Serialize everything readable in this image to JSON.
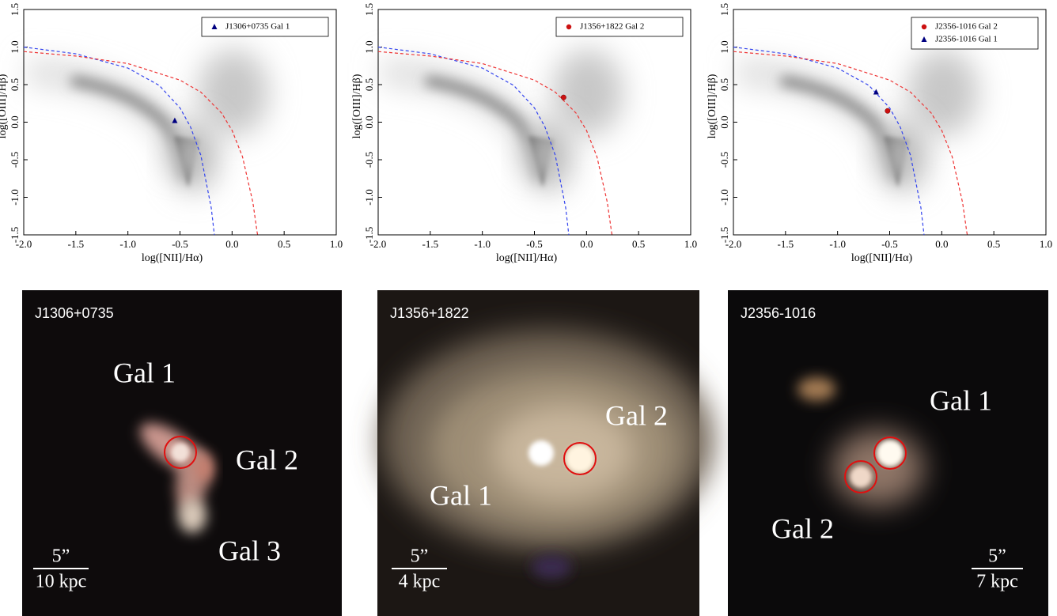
{
  "chart_data": [
    {
      "type": "scatter",
      "xlabel": "log([NII]/Hα)",
      "ylabel": "log([OIII]/Hβ)",
      "xlim": [
        -2,
        1
      ],
      "ylim": [
        -1.5,
        1.5
      ],
      "xticks": [
        {
          "value": -2,
          "label": "-2.0"
        },
        -1.5,
        {
          "value": -1,
          "label": "-1.0"
        },
        -0.5,
        {
          "value": 0,
          "label": "0.0"
        },
        0.5,
        {
          "value": 1,
          "label": "1.0"
        }
      ],
      "yticks": [
        -1.5,
        {
          "value": -1,
          "label": "-1.0"
        },
        -0.5,
        {
          "value": 0,
          "label": "0.0"
        },
        0.5,
        {
          "value": 1,
          "label": "1.0"
        },
        1.5
      ],
      "grid": false,
      "legend": "upper right",
      "curves": [
        {
          "color": "#3344ee",
          "x": [
            -2,
            -1.5,
            -1,
            -0.7,
            -0.5,
            -0.4,
            -0.3,
            -0.2,
            -0.17
          ],
          "values": [
            1.0,
            0.91,
            0.72,
            0.49,
            0.19,
            -0.06,
            -0.44,
            -1.14,
            -1.5
          ]
        },
        {
          "color": "#ee3333",
          "x": [
            -2,
            -1.5,
            -1,
            -0.5,
            -0.3,
            -0.1,
            0,
            0.1,
            0.2,
            0.24,
            0.245
          ],
          "values": [
            0.94,
            0.88,
            0.78,
            0.56,
            0.4,
            0.12,
            -0.11,
            -0.46,
            -1.07,
            -1.46,
            -1.5
          ]
        }
      ],
      "series": [
        {
          "name": "J1306+0735 Gal 1",
          "color": "#000080",
          "marker": "triangle",
          "x": [
            -0.55
          ],
          "values": [
            0.02
          ]
        }
      ]
    },
    {
      "type": "scatter",
      "xlabel": "log([NII]/Hα)",
      "ylabel": "log([OIII]/Hβ)",
      "xlim": [
        -2,
        1
      ],
      "ylim": [
        -1.5,
        1.5
      ],
      "xticks": [
        {
          "value": -2,
          "label": "-2.0"
        },
        -1.5,
        {
          "value": -1,
          "label": "-1.0"
        },
        -0.5,
        {
          "value": 0,
          "label": "0.0"
        },
        0.5,
        {
          "value": 1,
          "label": "1.0"
        }
      ],
      "yticks": [
        -1.5,
        {
          "value": -1,
          "label": "-1.0"
        },
        -0.5,
        {
          "value": 0,
          "label": "0.0"
        },
        0.5,
        {
          "value": 1,
          "label": "1.0"
        },
        1.5
      ],
      "grid": false,
      "legend": "upper right",
      "curves": [
        {
          "color": "#3344ee",
          "x": [
            -2,
            -1.5,
            -1,
            -0.7,
            -0.5,
            -0.4,
            -0.3,
            -0.2,
            -0.17
          ],
          "values": [
            1.0,
            0.91,
            0.72,
            0.49,
            0.19,
            -0.06,
            -0.44,
            -1.14,
            -1.5
          ]
        },
        {
          "color": "#ee3333",
          "x": [
            -2,
            -1.5,
            -1,
            -0.5,
            -0.3,
            -0.1,
            0,
            0.1,
            0.2,
            0.24,
            0.245
          ],
          "values": [
            0.94,
            0.88,
            0.78,
            0.56,
            0.4,
            0.12,
            -0.11,
            -0.46,
            -1.07,
            -1.46,
            -1.5
          ]
        }
      ],
      "series": [
        {
          "name": "J1356+1822 Gal 2",
          "color": "#cc1111",
          "marker": "circle",
          "x": [
            -0.22
          ],
          "values": [
            0.33
          ]
        }
      ]
    },
    {
      "type": "scatter",
      "xlabel": "log([NII]/Hα)",
      "ylabel": "log([OIII]/Hβ)",
      "xlim": [
        -2,
        1
      ],
      "ylim": [
        -1.5,
        1.5
      ],
      "xticks": [
        {
          "value": -2,
          "label": "-2.0"
        },
        -1.5,
        {
          "value": -1,
          "label": "-1.0"
        },
        -0.5,
        {
          "value": 0,
          "label": "0.0"
        },
        0.5,
        {
          "value": 1,
          "label": "1.0"
        }
      ],
      "yticks": [
        -1.5,
        {
          "value": -1,
          "label": "-1.0"
        },
        -0.5,
        {
          "value": 0,
          "label": "0.0"
        },
        0.5,
        {
          "value": 1,
          "label": "1.0"
        },
        1.5
      ],
      "grid": false,
      "legend": "upper right",
      "curves": [
        {
          "color": "#3344ee",
          "x": [
            -2,
            -1.5,
            -1,
            -0.7,
            -0.5,
            -0.4,
            -0.3,
            -0.2,
            -0.17
          ],
          "values": [
            1.0,
            0.91,
            0.72,
            0.49,
            0.19,
            -0.06,
            -0.44,
            -1.14,
            -1.5
          ]
        },
        {
          "color": "#ee3333",
          "x": [
            -2,
            -1.5,
            -1,
            -0.5,
            -0.3,
            -0.1,
            0,
            0.1,
            0.2,
            0.24,
            0.245
          ],
          "values": [
            0.94,
            0.88,
            0.78,
            0.56,
            0.4,
            0.12,
            -0.11,
            -0.46,
            -1.07,
            -1.46,
            -1.5
          ]
        }
      ],
      "series": [
        {
          "name": "J2356-1016 Gal 2",
          "color": "#cc1111",
          "marker": "circle",
          "x": [
            -0.52
          ],
          "values": [
            0.15
          ]
        },
        {
          "name": "J2356-1016 Gal 1",
          "color": "#000080",
          "marker": "triangle",
          "x": [
            -0.63
          ],
          "values": [
            0.4
          ]
        }
      ]
    }
  ],
  "images": [
    {
      "name": "J1306+0735",
      "labels": [
        "Gal 1",
        "Gal 2",
        "Gal 3"
      ],
      "scale_arcsec": "5”",
      "scale_kpc": "10 kpc"
    },
    {
      "name": "J1356+1822",
      "labels": [
        "Gal 2",
        "Gal 1"
      ],
      "scale_arcsec": "5”",
      "scale_kpc": "4 kpc"
    },
    {
      "name": "J2356-1016",
      "labels": [
        "Gal 1",
        "Gal 2"
      ],
      "scale_arcsec": "5”",
      "scale_kpc": "7 kpc"
    }
  ]
}
